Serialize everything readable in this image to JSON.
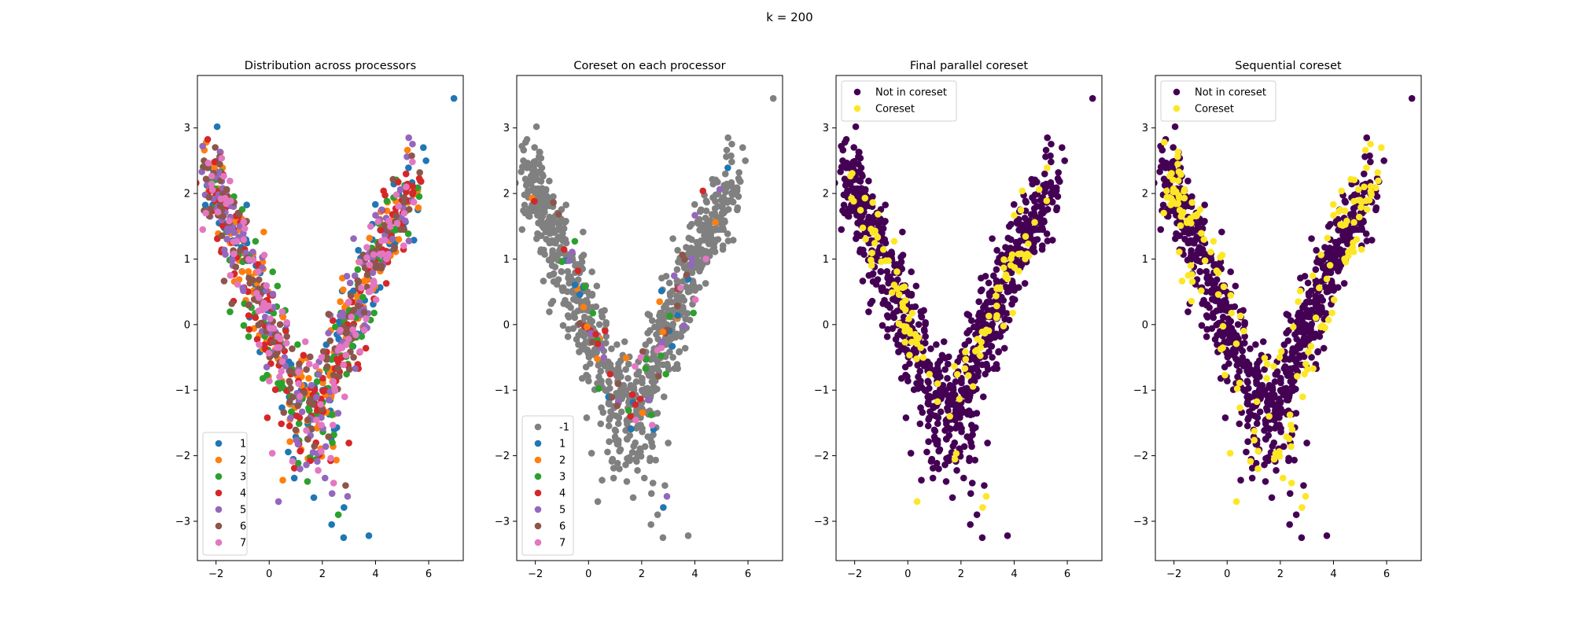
{
  "figure": {
    "suptitle": "k = 200"
  },
  "colors": {
    "viridis_dark": "#440154",
    "viridis_yellow": "#fde725",
    "gray": "#808080",
    "tab10": [
      "#1f77b4",
      "#ff7f0e",
      "#2ca02c",
      "#d62728",
      "#9467bd",
      "#8c564b",
      "#e377c2"
    ]
  },
  "chart_data": [
    {
      "type": "scatter",
      "title": "Distribution across processors",
      "xlim": [
        -2.7,
        7.3
      ],
      "ylim": [
        -3.6,
        3.8
      ],
      "xticks": [
        -2,
        0,
        2,
        4,
        6
      ],
      "yticks": [
        -3,
        -2,
        -1,
        0,
        1,
        2,
        3
      ],
      "legend_position": "lower-left",
      "legend": [
        "1",
        "2",
        "3",
        "4",
        "5",
        "6",
        "7"
      ],
      "highlight_groups": [
        1,
        2,
        3,
        4,
        5,
        6,
        7
      ],
      "base_group": null
    },
    {
      "type": "scatter",
      "title": "Coreset on each processor",
      "xlim": [
        -2.7,
        7.3
      ],
      "ylim": [
        -3.6,
        3.8
      ],
      "xticks": [
        -2,
        0,
        2,
        4,
        6
      ],
      "yticks": [
        -3,
        -2,
        -1,
        0,
        1,
        2,
        3
      ],
      "legend_position": "lower-left",
      "legend": [
        "-1",
        "1",
        "2",
        "3",
        "4",
        "5",
        "6",
        "7"
      ],
      "highlight_groups": [
        1,
        2,
        3,
        4,
        5,
        6,
        7
      ],
      "base_group": -1
    },
    {
      "type": "scatter",
      "title": "Final parallel coreset",
      "xlim": [
        -2.7,
        7.3
      ],
      "ylim": [
        -3.6,
        3.8
      ],
      "xticks": [
        -2,
        0,
        2,
        4,
        6
      ],
      "yticks": [
        -3,
        -2,
        -1,
        0,
        1,
        2,
        3
      ],
      "legend_position": "upper-left",
      "legend": [
        "Not in coreset",
        "Coreset"
      ],
      "coreset_region": "inner",
      "n_points": 1000,
      "n_coreset": 200
    },
    {
      "type": "scatter",
      "title": "Sequential coreset",
      "xlim": [
        -2.7,
        7.3
      ],
      "ylim": [
        -3.6,
        3.8
      ],
      "xticks": [
        -2,
        0,
        2,
        4,
        6
      ],
      "yticks": [
        -3,
        -2,
        -1,
        0,
        1,
        2,
        3
      ],
      "legend_position": "upper-left",
      "legend": [
        "Not in coreset",
        "Coreset"
      ],
      "coreset_region": "outer",
      "n_points": 1000,
      "n_coreset": 200
    }
  ],
  "outlier_points": [
    {
      "x": 6.95,
      "y": 3.45
    },
    {
      "x": 5.25,
      "y": 2.85
    },
    {
      "x": 5.9,
      "y": 2.5
    },
    {
      "x": 5.8,
      "y": 2.7
    },
    {
      "x": 2.8,
      "y": -3.25
    },
    {
      "x": 2.95,
      "y": -2.62
    },
    {
      "x": 2.35,
      "y": -3.05
    },
    {
      "x": 3.75,
      "y": -3.22
    },
    {
      "x": 0.35,
      "y": -2.7
    },
    {
      "x": 2.6,
      "y": -2.9
    },
    {
      "x": -2.45,
      "y": 2.5
    },
    {
      "x": -2.5,
      "y": 1.45
    },
    {
      "x": -2.0,
      "y": 2.45
    }
  ]
}
